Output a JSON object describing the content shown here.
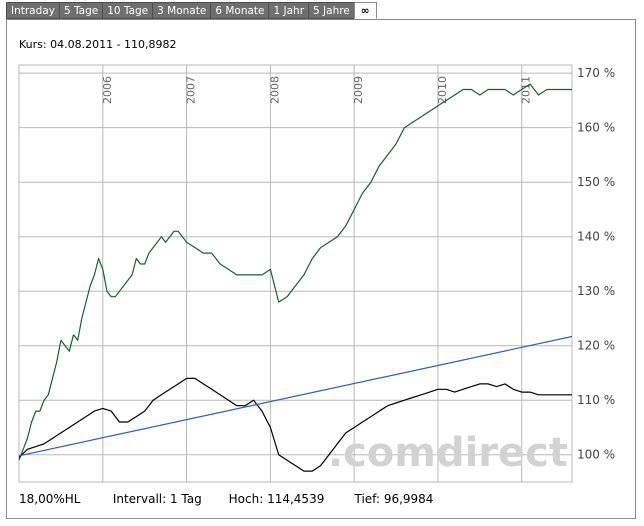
{
  "tabs": [
    {
      "label": "Intraday",
      "name": "tab-intraday"
    },
    {
      "label": "5 Tage",
      "name": "tab-5-tage"
    },
    {
      "label": "10 Tage",
      "name": "tab-10-tage"
    },
    {
      "label": "3 Monate",
      "name": "tab-3-monate"
    },
    {
      "label": "6 Monate",
      "name": "tab-6-monate"
    },
    {
      "label": "1 Jahr",
      "name": "tab-1-jahr"
    },
    {
      "label": "5 Jahre",
      "name": "tab-5-jahre"
    },
    {
      "label": "∞",
      "name": "tab-max",
      "active": true
    }
  ],
  "header": {
    "kurs": "Kurs: 04.08.2011 - 110,8982"
  },
  "footer": {
    "hl": "18,00%HL",
    "intervall": "Intervall: 1 Tag",
    "hoch": "Hoch: 114,4539",
    "tief": "Tief: 96,9984"
  },
  "watermark": ".comdirect",
  "colors": {
    "series_green": "#1a5e36",
    "series_black": "#000000",
    "trend_blue": "#2f5fb0",
    "grid": "#b8b8b8"
  },
  "chart_data": {
    "type": "line",
    "x_labels": [
      "2006",
      "2007",
      "2008",
      "2009",
      "2010",
      "2011"
    ],
    "y_labels": [
      "100 %",
      "110 %",
      "120 %",
      "130 %",
      "140 %",
      "150 %",
      "160 %",
      "170 %"
    ],
    "ylim": [
      95,
      171.5
    ],
    "xlim": [
      2005.0,
      2011.6
    ],
    "series": [
      {
        "color": "green",
        "x": [
          2005.0,
          2005.05,
          2005.1,
          2005.15,
          2005.2,
          2005.25,
          2005.3,
          2005.35,
          2005.4,
          2005.45,
          2005.5,
          2005.55,
          2005.6,
          2005.65,
          2005.7,
          2005.75,
          2005.8,
          2005.85,
          2005.9,
          2005.95,
          2006.0,
          2006.05,
          2006.1,
          2006.15,
          2006.2,
          2006.25,
          2006.3,
          2006.35,
          2006.4,
          2006.45,
          2006.5,
          2006.55,
          2006.6,
          2006.65,
          2006.7,
          2006.75,
          2006.8,
          2006.85,
          2006.9,
          2006.95,
          2007.0,
          2007.1,
          2007.2,
          2007.3,
          2007.4,
          2007.5,
          2007.6,
          2007.7,
          2007.8,
          2007.9,
          2008.0,
          2008.1,
          2008.2,
          2008.3,
          2008.4,
          2008.5,
          2008.6,
          2008.7,
          2008.8,
          2008.9,
          2009.0,
          2009.1,
          2009.2,
          2009.3,
          2009.4,
          2009.5,
          2009.6,
          2009.7,
          2009.8,
          2009.9,
          2010.0,
          2010.1,
          2010.2,
          2010.3,
          2010.4,
          2010.5,
          2010.6,
          2010.7,
          2010.8,
          2010.9,
          2011.0,
          2011.1,
          2011.2,
          2011.3,
          2011.4,
          2011.5,
          2011.6
        ],
        "y": [
          99,
          101,
          103,
          106,
          108,
          108,
          110,
          111,
          114,
          117,
          121,
          120,
          119,
          122,
          121,
          125,
          128,
          131,
          133,
          136,
          134,
          130,
          129,
          129,
          130,
          131,
          132,
          133,
          136,
          135,
          135,
          137,
          138,
          139,
          140,
          139,
          140,
          141,
          141,
          140,
          139,
          138,
          137,
          137,
          135,
          134,
          133,
          133,
          133,
          133,
          134,
          128,
          129,
          131,
          133,
          136,
          138,
          139,
          140,
          142,
          145,
          148,
          150,
          153,
          155,
          157,
          160,
          161,
          162,
          163,
          164,
          165,
          166,
          167,
          167,
          166,
          167,
          167,
          167,
          166,
          167,
          168,
          166,
          167,
          167,
          167,
          167
        ]
      },
      {
        "color": "black",
        "x": [
          2005.0,
          2005.1,
          2005.2,
          2005.3,
          2005.4,
          2005.5,
          2005.6,
          2005.7,
          2005.8,
          2005.9,
          2006.0,
          2006.1,
          2006.2,
          2006.3,
          2006.4,
          2006.5,
          2006.6,
          2006.7,
          2006.8,
          2006.9,
          2007.0,
          2007.1,
          2007.2,
          2007.3,
          2007.4,
          2007.5,
          2007.6,
          2007.7,
          2007.8,
          2007.9,
          2008.0,
          2008.1,
          2008.2,
          2008.3,
          2008.4,
          2008.5,
          2008.6,
          2008.7,
          2008.8,
          2008.9,
          2009.0,
          2009.1,
          2009.2,
          2009.3,
          2009.4,
          2009.5,
          2009.6,
          2009.7,
          2009.8,
          2009.9,
          2010.0,
          2010.1,
          2010.2,
          2010.3,
          2010.4,
          2010.5,
          2010.6,
          2010.7,
          2010.8,
          2010.9,
          2011.0,
          2011.1,
          2011.2,
          2011.3,
          2011.4,
          2011.5,
          2011.6
        ],
        "y": [
          99.5,
          101,
          101.5,
          102,
          103,
          104,
          105,
          106,
          107,
          108,
          108.5,
          108,
          106,
          106,
          107,
          108,
          110,
          111,
          112,
          113,
          114,
          114,
          113,
          112,
          111,
          110,
          109,
          109,
          110,
          108,
          105,
          100,
          99,
          98,
          97,
          97,
          98,
          100,
          102,
          104,
          105,
          106,
          107,
          108,
          109,
          109.5,
          110,
          110.5,
          111,
          111.5,
          112,
          112,
          111.5,
          112,
          112.5,
          113,
          113,
          112.5,
          113,
          112,
          111.5,
          111.5,
          111,
          111,
          111,
          111,
          111
        ]
      },
      {
        "color": "blue",
        "x": [
          2005.0,
          2011.6
        ],
        "y": [
          99.8,
          121.7
        ]
      }
    ]
  }
}
